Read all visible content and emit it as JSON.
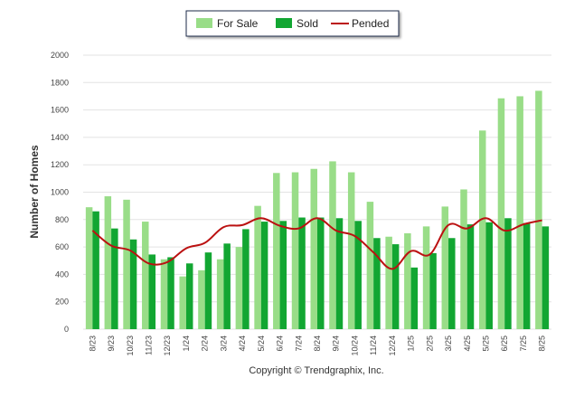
{
  "chart_data": {
    "type": "bar",
    "ylabel": "Number of Homes",
    "ylim": [
      0,
      2000
    ],
    "yticks": [
      "0",
      "200",
      "400",
      "600",
      "800",
      "1000",
      "1200",
      "1400",
      "1600",
      "1800",
      "2000"
    ],
    "categories": [
      "8/23",
      "9/23",
      "10/23",
      "11/23",
      "12/23",
      "1/24",
      "2/24",
      "3/24",
      "4/24",
      "5/24",
      "6/24",
      "7/24",
      "8/24",
      "9/24",
      "10/24",
      "11/24",
      "12/24",
      "1/25",
      "2/25",
      "3/25",
      "4/25",
      "5/25",
      "6/25",
      "7/25",
      "8/25"
    ],
    "series": [
      {
        "name": "For Sale",
        "type": "bar",
        "color": "#99dd88",
        "values": [
          890,
          970,
          945,
          785,
          510,
          385,
          430,
          510,
          600,
          900,
          1140,
          1145,
          1170,
          1225,
          1145,
          930,
          675,
          700,
          750,
          895,
          1020,
          1450,
          1685,
          1700,
          1740
        ]
      },
      {
        "name": "Sold",
        "type": "bar",
        "color": "#12a632",
        "values": [
          860,
          735,
          655,
          545,
          525,
          480,
          560,
          625,
          730,
          785,
          790,
          815,
          815,
          810,
          790,
          665,
          620,
          450,
          555,
          665,
          765,
          780,
          810,
          775,
          750
        ]
      },
      {
        "name": "Pended",
        "type": "line",
        "color": "#bb1111",
        "values": [
          720,
          610,
          575,
          480,
          490,
          590,
          630,
          745,
          760,
          810,
          755,
          735,
          810,
          720,
          680,
          560,
          440,
          570,
          545,
          760,
          735,
          810,
          720,
          765,
          795
        ]
      }
    ],
    "legend_position": "top-center",
    "grid": true
  },
  "footer": {
    "copyright": "Copyright © Trendgraphix, Inc."
  }
}
